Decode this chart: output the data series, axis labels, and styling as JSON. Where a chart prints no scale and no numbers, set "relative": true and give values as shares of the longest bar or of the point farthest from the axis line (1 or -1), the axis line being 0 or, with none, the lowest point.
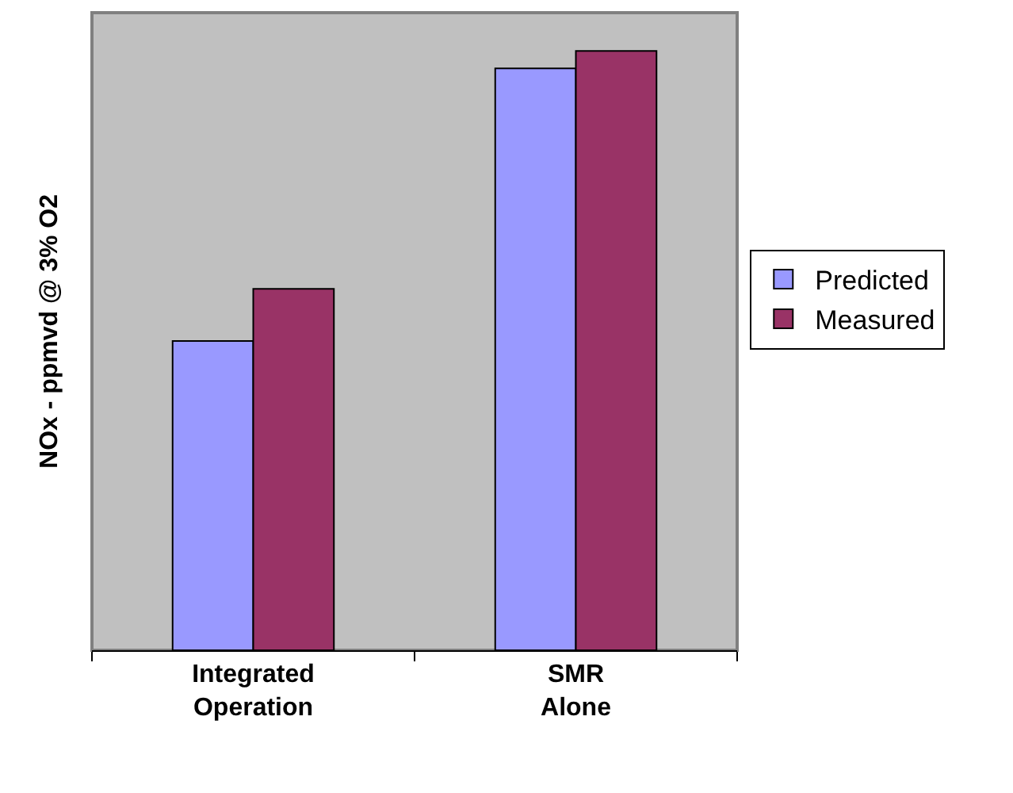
{
  "chart_data": {
    "type": "bar",
    "ylabel": "NOx - ppmvd @ 3% O2",
    "categories": [
      "Integrated Operation",
      "SMR Alone"
    ],
    "series": [
      {
        "name": "Predicted",
        "color": "#9999ff",
        "values": [
          0.516,
          0.971
        ]
      },
      {
        "name": "Measured",
        "color": "#993366",
        "values": [
          0.603,
          1
        ]
      }
    ],
    "relative": true,
    "grid": false,
    "legend": "right"
  }
}
